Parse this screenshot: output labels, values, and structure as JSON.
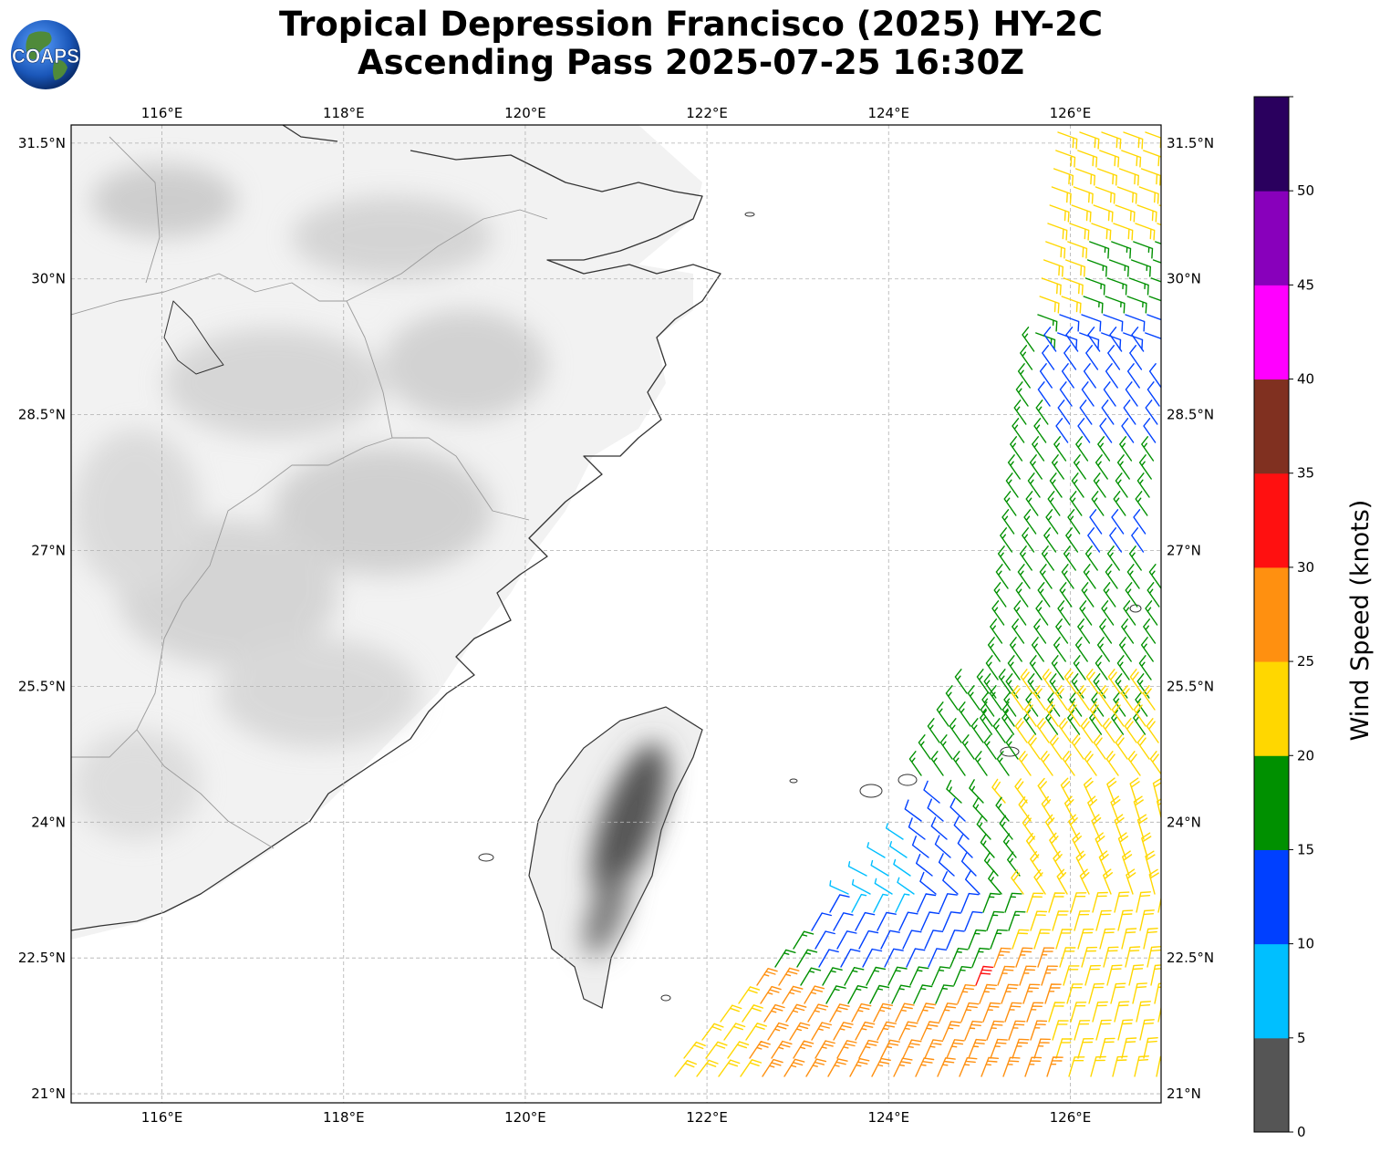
{
  "title": {
    "line1": "Tropical Depression Francisco (2025) HY-2C",
    "line2": "Ascending Pass 2025-07-25 16:30Z"
  },
  "logo": {
    "text": "COAPS",
    "icon": "earth-globe-icon"
  },
  "map": {
    "lon_range": [
      115,
      127
    ],
    "lat_range": [
      20.9,
      31.7
    ],
    "lon_ticks": [
      "116°E",
      "118°E",
      "120°E",
      "122°E",
      "124°E",
      "126°E"
    ],
    "lat_ticks": [
      "21°N",
      "22.5°N",
      "24°N",
      "25.5°N",
      "27°N",
      "28.5°N",
      "30°N",
      "31.5°N"
    ],
    "land_label": "",
    "grid": true
  },
  "colorbar": {
    "label": "Wind Speed (knots)",
    "ticks": [
      "0",
      "5",
      "10",
      "15",
      "20",
      "25",
      "30",
      "35",
      "40",
      "45",
      "50"
    ],
    "colors": [
      "#555555",
      "#00bfff",
      "#0040ff",
      "#009000",
      "#ffd700",
      "#ff9010",
      "#ff1010",
      "#803020",
      "#ff00ff",
      "#8800bb",
      "#2a005e"
    ]
  },
  "colors": {
    "coast": "#333333",
    "border": "#999999",
    "grid": "#b0b0b0"
  }
}
